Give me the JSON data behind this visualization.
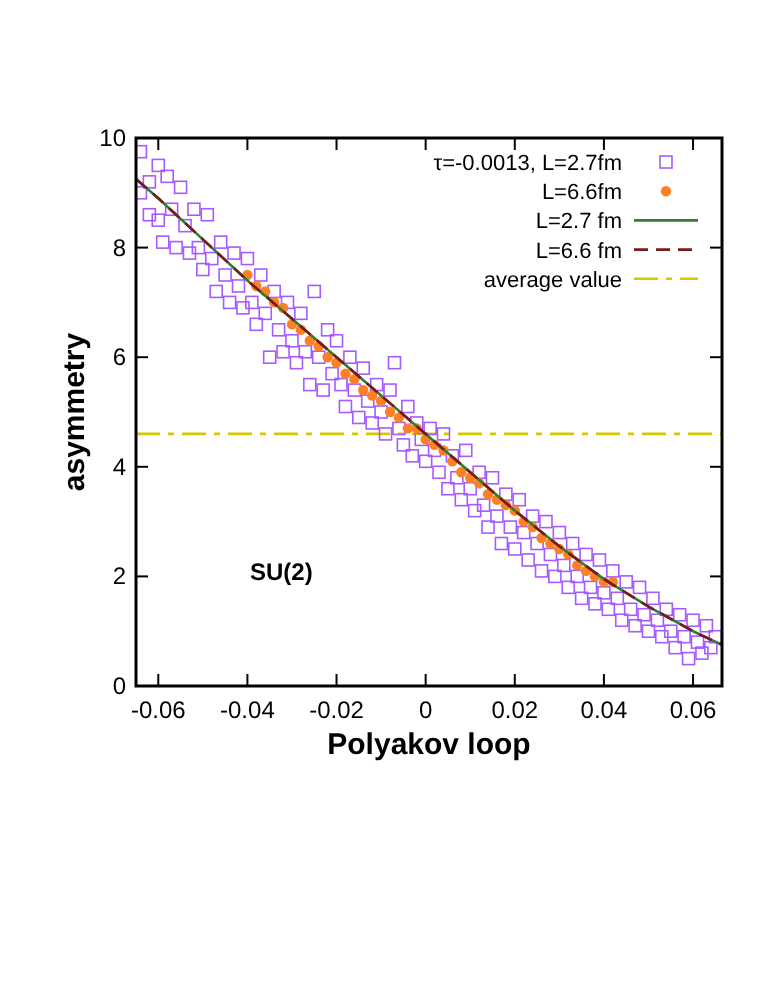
{
  "chart_data": {
    "type": "scatter",
    "xlabel": "Polyakov loop",
    "ylabel": "asymmetry",
    "xlim": [
      -0.065,
      0.0665
    ],
    "ylim": [
      0,
      10
    ],
    "xticks": [
      {
        "value": -0.06,
        "label": "-0.06"
      },
      {
        "value": -0.04,
        "label": "-0.04"
      },
      {
        "value": -0.02,
        "label": "-0.02"
      },
      {
        "value": 0,
        "label": "0"
      },
      {
        "value": 0.02,
        "label": "0.02"
      },
      {
        "value": 0.04,
        "label": "0.04"
      },
      {
        "value": 0.06,
        "label": "0.06"
      }
    ],
    "yticks": [
      0,
      2,
      4,
      6,
      8,
      10
    ],
    "grid": false,
    "legend": "top right",
    "annotations": [
      "SU(2)"
    ],
    "ref_lines": [
      {
        "axis": "y",
        "value": 4.6,
        "label": "average value",
        "color": "#d4c800",
        "line_style": "dashed"
      }
    ],
    "series": [
      {
        "name": "τ=-0.0013, L=2.7fm",
        "color": "#a55bff",
        "marker": "square",
        "x": [
          -0.064,
          -0.064,
          -0.062,
          -0.062,
          -0.06,
          -0.06,
          -0.059,
          -0.058,
          -0.057,
          -0.056,
          -0.055,
          -0.054,
          -0.053,
          -0.052,
          -0.051,
          -0.05,
          -0.049,
          -0.048,
          -0.047,
          -0.046,
          -0.045,
          -0.044,
          -0.043,
          -0.042,
          -0.041,
          -0.04,
          -0.039,
          -0.038,
          -0.037,
          -0.036,
          -0.035,
          -0.034,
          -0.033,
          -0.032,
          -0.031,
          -0.03,
          -0.029,
          -0.028,
          -0.027,
          -0.026,
          -0.025,
          -0.024,
          -0.023,
          -0.022,
          -0.021,
          -0.02,
          -0.019,
          -0.018,
          -0.017,
          -0.016,
          -0.015,
          -0.014,
          -0.013,
          -0.012,
          -0.011,
          -0.01,
          -0.009,
          -0.008,
          -0.007,
          -0.006,
          -0.005,
          -0.004,
          -0.003,
          -0.002,
          -0.001,
          0,
          0.001,
          0.002,
          0.003,
          0.004,
          0.005,
          0.006,
          0.007,
          0.008,
          0.009,
          0.01,
          0.011,
          0.012,
          0.013,
          0.014,
          0.015,
          0.016,
          0.017,
          0.018,
          0.019,
          0.02,
          0.021,
          0.022,
          0.023,
          0.024,
          0.025,
          0.026,
          0.027,
          0.028,
          0.029,
          0.03,
          0.031,
          0.032,
          0.033,
          0.034,
          0.035,
          0.036,
          0.037,
          0.038,
          0.039,
          0.04,
          0.041,
          0.042,
          0.043,
          0.044,
          0.045,
          0.046,
          0.047,
          0.048,
          0.049,
          0.05,
          0.051,
          0.052,
          0.053,
          0.054,
          0.055,
          0.056,
          0.057,
          0.058,
          0.059,
          0.06,
          0.061,
          0.062,
          0.063,
          0.064,
          0.065
        ],
        "values": [
          9.75,
          9.0,
          9.2,
          8.6,
          9.5,
          8.5,
          8.1,
          9.3,
          8.7,
          8.0,
          9.1,
          8.4,
          7.9,
          8.7,
          8.0,
          7.6,
          8.6,
          7.8,
          7.2,
          8.1,
          7.5,
          7.0,
          7.9,
          7.3,
          6.9,
          7.8,
          7.0,
          6.6,
          7.5,
          6.8,
          6.0,
          7.2,
          6.5,
          6.1,
          7.0,
          6.3,
          5.9,
          6.8,
          6.1,
          5.5,
          7.2,
          6.0,
          5.4,
          6.5,
          5.7,
          6.3,
          5.5,
          5.1,
          6.0,
          5.4,
          4.9,
          5.8,
          5.2,
          4.8,
          5.5,
          5.0,
          4.6,
          5.4,
          5.9,
          4.7,
          4.4,
          5.1,
          4.2,
          4.8,
          4.5,
          4.1,
          4.7,
          4.3,
          3.9,
          4.6,
          3.6,
          4.2,
          3.8,
          3.4,
          4.3,
          3.6,
          3.2,
          3.9,
          3.3,
          2.9,
          3.8,
          3.1,
          2.6,
          3.5,
          2.9,
          2.5,
          3.4,
          2.8,
          2.3,
          3.1,
          2.6,
          2.1,
          3.0,
          2.4,
          2.0,
          2.8,
          2.2,
          1.8,
          2.6,
          2.0,
          1.6,
          2.4,
          1.8,
          1.5,
          2.3,
          1.7,
          1.4,
          2.1,
          1.6,
          1.2,
          1.9,
          1.4,
          1.1,
          1.8,
          1.3,
          1.0,
          1.6,
          1.2,
          0.9,
          1.4,
          1.0,
          0.7,
          1.3,
          0.9,
          0.5,
          1.2,
          0.8,
          0.6,
          1.1,
          0.7,
          0.9
        ]
      },
      {
        "name": "L=6.6fm",
        "color": "#ff7f27",
        "marker": "circle",
        "x": [
          -0.04,
          -0.038,
          -0.036,
          -0.034,
          -0.032,
          -0.03,
          -0.028,
          -0.026,
          -0.024,
          -0.022,
          -0.02,
          -0.018,
          -0.016,
          -0.014,
          -0.012,
          -0.01,
          -0.008,
          -0.006,
          -0.004,
          -0.002,
          0,
          0.002,
          0.004,
          0.006,
          0.008,
          0.01,
          0.012,
          0.014,
          0.016,
          0.018,
          0.02,
          0.022,
          0.024,
          0.026,
          0.028,
          0.03,
          0.032,
          0.034,
          0.036,
          0.038,
          0.04,
          0.042
        ],
        "values": [
          7.5,
          7.3,
          7.2,
          7.0,
          6.9,
          6.6,
          6.5,
          6.3,
          6.2,
          6.0,
          5.9,
          5.7,
          5.6,
          5.4,
          5.3,
          5.2,
          5.0,
          4.9,
          4.7,
          4.7,
          4.5,
          4.4,
          4.3,
          4.1,
          3.9,
          3.8,
          3.7,
          3.5,
          3.4,
          3.3,
          3.2,
          3.0,
          2.9,
          2.7,
          2.6,
          2.5,
          2.4,
          2.2,
          2.1,
          2.0,
          1.9,
          1.9
        ]
      },
      {
        "type": "line",
        "name": "L=2.7 fm",
        "color": "#2e7d32",
        "line_style": "solid",
        "x": [
          -0.065,
          -0.06,
          -0.05,
          -0.04,
          -0.03,
          -0.02,
          -0.01,
          0,
          0.01,
          0.02,
          0.03,
          0.04,
          0.05,
          0.06,
          0.0665
        ],
        "values": [
          9.25,
          8.9,
          8.15,
          7.4,
          6.7,
          6.0,
          5.3,
          4.6,
          3.9,
          3.2,
          2.55,
          1.95,
          1.45,
          1.0,
          0.75
        ]
      },
      {
        "type": "line",
        "name": "L=6.6 fm",
        "color": "#7b1a1a",
        "line_style": "dashed",
        "x": [
          -0.065,
          -0.06,
          -0.05,
          -0.04,
          -0.03,
          -0.02,
          -0.01,
          0,
          0.01,
          0.02,
          0.03,
          0.04,
          0.05,
          0.06,
          0.0665
        ],
        "values": [
          9.25,
          8.9,
          8.15,
          7.4,
          6.7,
          6.0,
          5.3,
          4.6,
          3.9,
          3.2,
          2.55,
          1.95,
          1.45,
          1.0,
          0.75
        ]
      }
    ]
  }
}
